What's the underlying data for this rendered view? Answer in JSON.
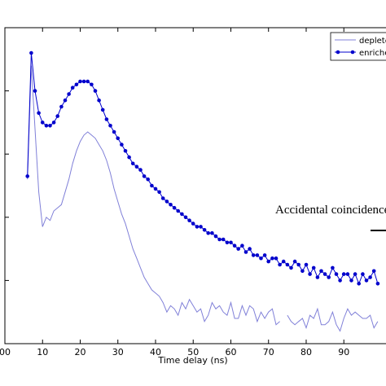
{
  "chart_data": {
    "type": "line",
    "title": "",
    "xlabel": "Time delay (ns)",
    "ylabel": "",
    "xlim": [
      0,
      100
    ],
    "ylim": [
      0,
      1
    ],
    "y_scale": "log",
    "grid": false,
    "legend_position": "top-right",
    "x_ticks": [
      0,
      10,
      20,
      30,
      40,
      50,
      60,
      70,
      80,
      90
    ],
    "x_tick_labels": [
      "00",
      "10",
      "20",
      "30",
      "40",
      "50",
      "60",
      "70",
      "80",
      "90"
    ],
    "annotation": "Accidental coincidences",
    "series": [
      {
        "name": "depleted",
        "color": "#8080d8",
        "marker": "none",
        "x": [
          6,
          7,
          8,
          9,
          10,
          11,
          12,
          13,
          14,
          15,
          16,
          17,
          18,
          19,
          20,
          21,
          22,
          23,
          24,
          25,
          26,
          27,
          28,
          29,
          30,
          31,
          32,
          33,
          34,
          35,
          36,
          37,
          38,
          39,
          40,
          41,
          42,
          43,
          44,
          45,
          46,
          47,
          48,
          49,
          50,
          51,
          52,
          53,
          54,
          55,
          56,
          57,
          58,
          59,
          60,
          61,
          62,
          63,
          64,
          65,
          66,
          67,
          68,
          69,
          70,
          71,
          72,
          73,
          75,
          76,
          77,
          78,
          79,
          80,
          81,
          82,
          83,
          84,
          85,
          86,
          87,
          88,
          89,
          90,
          91,
          92,
          93,
          94,
          95,
          96,
          97,
          98,
          99
        ],
        "y": [
          0.52,
          0.88,
          0.68,
          0.48,
          0.37,
          0.4,
          0.39,
          0.42,
          0.43,
          0.44,
          0.48,
          0.52,
          0.57,
          0.61,
          0.64,
          0.66,
          0.67,
          0.66,
          0.65,
          0.63,
          0.61,
          0.58,
          0.54,
          0.49,
          0.45,
          0.41,
          0.38,
          0.34,
          0.3,
          0.27,
          0.24,
          0.21,
          0.19,
          0.17,
          0.16,
          0.15,
          0.13,
          0.1,
          0.12,
          0.11,
          0.09,
          0.13,
          0.11,
          0.14,
          0.12,
          0.1,
          0.11,
          0.07,
          0.09,
          0.13,
          0.11,
          0.12,
          0.1,
          0.09,
          0.13,
          0.08,
          0.08,
          0.12,
          0.09,
          0.12,
          0.11,
          0.07,
          0.1,
          0.08,
          0.1,
          0.11,
          0.06,
          0.07,
          0.09,
          0.07,
          0.06,
          0.07,
          0.08,
          0.05,
          0.09,
          0.08,
          0.11,
          0.06,
          0.06,
          0.07,
          0.1,
          0.06,
          0.04,
          0.08,
          0.11,
          0.09,
          0.1,
          0.09,
          0.08,
          0.08,
          0.09,
          0.05,
          0.07
        ]
      },
      {
        "name": "enriched",
        "color": "#0000cc",
        "marker": "circle",
        "x": [
          6,
          7,
          8,
          9,
          10,
          11,
          12,
          13,
          14,
          15,
          16,
          17,
          18,
          19,
          20,
          21,
          22,
          23,
          24,
          25,
          26,
          27,
          28,
          29,
          30,
          31,
          32,
          33,
          34,
          35,
          36,
          37,
          38,
          39,
          40,
          41,
          42,
          43,
          44,
          45,
          46,
          47,
          48,
          49,
          50,
          51,
          52,
          53,
          54,
          55,
          56,
          57,
          58,
          59,
          60,
          61,
          62,
          63,
          64,
          65,
          66,
          67,
          68,
          69,
          70,
          71,
          72,
          73,
          74,
          75,
          76,
          77,
          78,
          79,
          80,
          81,
          82,
          83,
          84,
          85,
          86,
          87,
          88,
          89,
          90,
          91,
          92,
          93,
          94,
          95,
          96,
          97,
          98,
          99
        ],
        "y": [
          0.53,
          0.92,
          0.8,
          0.73,
          0.7,
          0.69,
          0.69,
          0.7,
          0.72,
          0.75,
          0.77,
          0.79,
          0.81,
          0.82,
          0.83,
          0.83,
          0.83,
          0.82,
          0.8,
          0.77,
          0.74,
          0.71,
          0.69,
          0.67,
          0.65,
          0.63,
          0.61,
          0.59,
          0.57,
          0.56,
          0.55,
          0.53,
          0.52,
          0.5,
          0.49,
          0.48,
          0.46,
          0.45,
          0.44,
          0.43,
          0.42,
          0.41,
          0.4,
          0.39,
          0.38,
          0.37,
          0.37,
          0.36,
          0.35,
          0.35,
          0.34,
          0.33,
          0.33,
          0.32,
          0.32,
          0.31,
          0.3,
          0.31,
          0.29,
          0.3,
          0.28,
          0.28,
          0.27,
          0.28,
          0.26,
          0.27,
          0.27,
          0.25,
          0.26,
          0.25,
          0.24,
          0.26,
          0.25,
          0.23,
          0.25,
          0.22,
          0.24,
          0.21,
          0.23,
          0.22,
          0.21,
          0.24,
          0.22,
          0.2,
          0.22,
          0.22,
          0.2,
          0.22,
          0.19,
          0.22,
          0.2,
          0.21,
          0.23,
          0.19
        ]
      }
    ]
  }
}
